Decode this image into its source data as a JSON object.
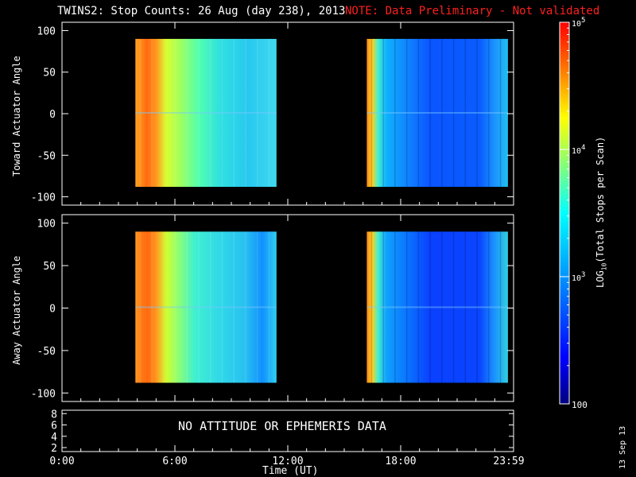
{
  "chart_data": [
    {
      "type": "heatmap",
      "title": "TWINS2: Stop Counts: 26 Aug (day 238), 2013",
      "note": "NOTE: Data Preliminary - Not validated",
      "ylabel": "Toward Actuator Angle",
      "ylim": [
        -110,
        110
      ],
      "yticks": [
        100,
        50,
        0,
        -50,
        -100
      ],
      "xlim_hours": [
        0,
        24
      ],
      "data_segments_hours": [
        [
          3.9,
          11.4
        ],
        [
          16.2,
          23.7
        ]
      ],
      "y_data_range": [
        -88,
        90
      ],
      "colorbar_label": "LOG10(Total Stops per Scan)",
      "colorbar_range": [
        100,
        100000
      ],
      "colorbar_scale": "log",
      "colorbar_ticks": [
        "10^5",
        "10^4",
        "10^3",
        "100"
      ]
    },
    {
      "type": "heatmap",
      "ylabel": "Away Actuator Angle",
      "ylim": [
        -110,
        110
      ],
      "yticks": [
        100,
        50,
        0,
        -50,
        -100
      ],
      "xlim_hours": [
        0,
        24
      ],
      "data_segments_hours": [
        [
          3.9,
          11.4
        ],
        [
          16.2,
          23.7
        ]
      ],
      "y_data_range": [
        -88,
        90
      ]
    },
    {
      "type": "line",
      "yticks": [
        8,
        6,
        4,
        2
      ],
      "annotation": "NO ATTITUDE OR EPHEMERIS DATA"
    }
  ],
  "xaxis": {
    "label": "Time (UT)",
    "ticks": [
      "0:00",
      "6:00",
      "12:00",
      "18:00",
      "23:59"
    ]
  },
  "panel1": {
    "ylabel": "Toward Actuator Angle",
    "ticks": [
      "100",
      "50",
      "0",
      "-50",
      "-100"
    ]
  },
  "panel2": {
    "ylabel": "Away Actuator Angle",
    "ticks": [
      "100",
      "50",
      "0",
      "-50",
      "-100"
    ]
  },
  "panel3": {
    "ticks": [
      "8",
      "6",
      "4",
      "2"
    ],
    "message": "NO ATTITUDE OR EPHEMERIS DATA"
  },
  "header": {
    "title": "TWINS2: Stop Counts: 26 Aug (day 238), 2013",
    "note": "NOTE: Data Preliminary - Not validated"
  },
  "colorbar": {
    "label": "LOG10(Total Stops per Scan)",
    "tick_labels": [
      "10^5",
      "10^4",
      "10^3",
      "100"
    ]
  },
  "datestamp": "13 Sep 13"
}
